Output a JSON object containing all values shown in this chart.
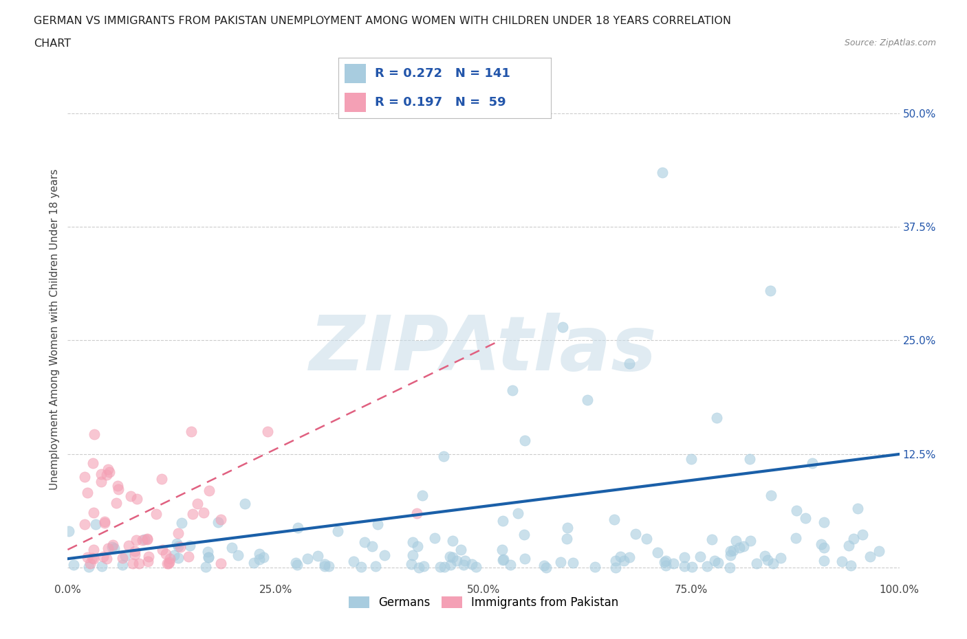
{
  "title_line1": "GERMAN VS IMMIGRANTS FROM PAKISTAN UNEMPLOYMENT AMONG WOMEN WITH CHILDREN UNDER 18 YEARS CORRELATION",
  "title_line2": "CHART",
  "source": "Source: ZipAtlas.com",
  "ylabel": "Unemployment Among Women with Children Under 18 years",
  "xlim": [
    0.0,
    1.0
  ],
  "ylim": [
    -0.015,
    0.54
  ],
  "xticks": [
    0.0,
    0.25,
    0.5,
    0.75,
    1.0
  ],
  "xtick_labels": [
    "0.0%",
    "25.0%",
    "50.0%",
    "75.0%",
    "100.0%"
  ],
  "yticks": [
    0.0,
    0.125,
    0.25,
    0.375,
    0.5
  ],
  "ytick_labels_left": [
    "",
    "",
    "",
    "",
    ""
  ],
  "ytick_labels_right": [
    "",
    "12.5%",
    "25.0%",
    "37.5%",
    "50.0%"
  ],
  "R_german": 0.272,
  "N_german": 141,
  "R_pakistan": 0.197,
  "N_pakistan": 59,
  "color_german": "#a8ccdf",
  "color_pakistan": "#f4a0b5",
  "trendline_german_color": "#1a5fa8",
  "trendline_pakistan_color": "#e06080",
  "watermark": "ZIPAtlas",
  "watermark_color": "#c8dce8",
  "background_color": "#ffffff",
  "grid_color": "#cccccc",
  "legend_text_color": "#2255aa",
  "right_tick_color": "#2255aa"
}
